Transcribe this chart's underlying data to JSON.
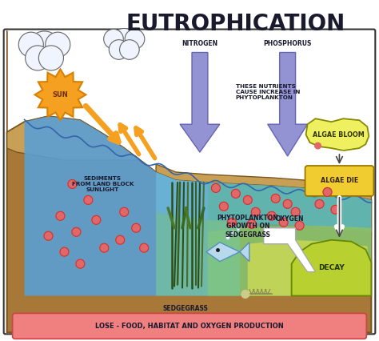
{
  "title": "EUTROPHICATION",
  "title_fontsize": 20,
  "background_color": "#ffffff",
  "bottom_banner_text": "LOSE - FOOD, HABITAT AND OXYGEN PRODUCTION",
  "bottom_banner_color": "#f08080",
  "bottom_banner_text_color": "#1a1a2e",
  "labels": {
    "sun": "SUN",
    "nitrogen": "NITROGEN",
    "phosphorus": "PHOSPHORUS",
    "nutrients_note": "THESE NUTRIENTS\nCAUSE INCREASE IN\nPHYTOPLANKTON",
    "sediments": "SEDIMENTS\nFROM LAND BLOCK\nSUNLIGHT",
    "phytoplankton": "PHYTOPLANKTON\nGROWTH ON\nSEDGEGRASS",
    "oxygen": "OXYGEN",
    "sedgegrass": "SEDGEGRASS",
    "algae_bloom": "ALGAE BLOOM",
    "algae_die": "ALGAE DIE",
    "decay": "DECAY"
  },
  "colors": {
    "water_blue_left": "#5a9fd4",
    "water_blue_center": "#6ab5d8",
    "water_teal": "#5bb8a8",
    "water_green_light": "#a0c870",
    "water_yellow_green": "#c8d855",
    "ground_brown_light": "#c8a055",
    "ground_brown_mid": "#a87838",
    "ground_brown_dark": "#885520",
    "sky": "#ffffff",
    "sun_fill": "#f5a020",
    "sun_stroke": "#d88000",
    "arrow_orange": "#f5a020",
    "nitrogen_arrow": "#8080cc",
    "phosphorus_arrow": "#8080cc",
    "algae_bloom_fill": "#eef060",
    "algae_bloom_stroke": "#888800",
    "algae_die_fill": "#f0cc30",
    "algae_die_stroke": "#997700",
    "decay_fill": "#b8d030",
    "decay_stroke": "#668800",
    "plankton_dot_fill": "#e06868",
    "plankton_dot_stroke": "#cc3333",
    "seagrass_color": "#2a5018",
    "seagrass_light": "#4a7828"
  }
}
